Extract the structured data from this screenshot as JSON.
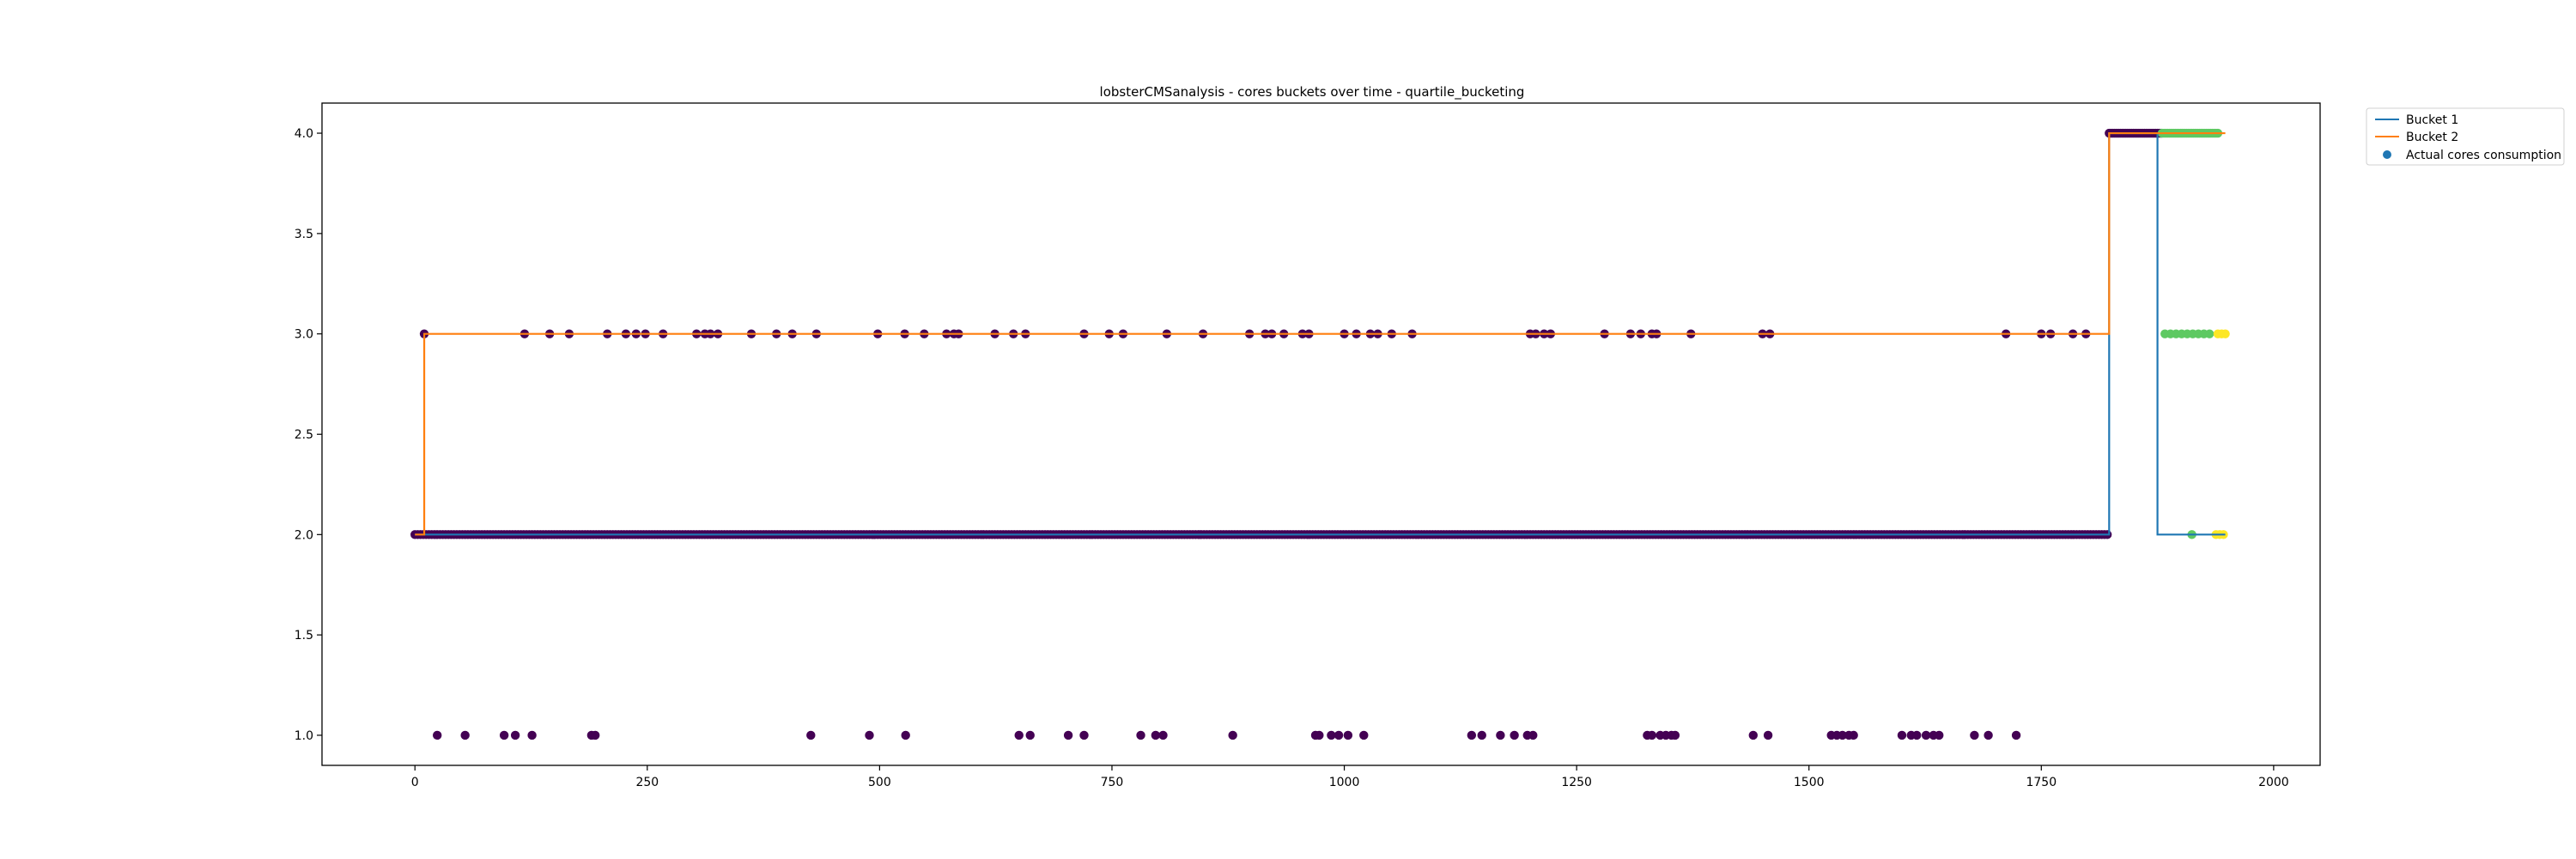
{
  "chart_data": {
    "type": "scatter",
    "title": "lobsterCMSanalysis - cores buckets over time - quartile_bucketing",
    "xlabel": "",
    "ylabel": "",
    "xlim": [
      -100,
      2050
    ],
    "ylim": [
      0.85,
      4.15
    ],
    "grid": false,
    "legend_position": "outside top-right",
    "xticks": [
      0,
      250,
      500,
      750,
      1000,
      1250,
      1500,
      1750,
      2000
    ],
    "xtick_labels": [
      "0",
      "250",
      "500",
      "750",
      "1000",
      "1250",
      "1500",
      "1750",
      "2000"
    ],
    "yticks": [
      1.0,
      1.5,
      2.0,
      2.5,
      3.0,
      3.5,
      4.0
    ],
    "ytick_labels": [
      "1.0",
      "1.5",
      "2.0",
      "2.5",
      "3.0",
      "3.5",
      "4.0"
    ],
    "series": [
      {
        "name": "Bucket 1",
        "kind": "line",
        "color": "#1f77b4",
        "steps": [
          [
            0,
            2.0
          ],
          [
            1823,
            2.0
          ],
          [
            1823,
            4.0
          ],
          [
            1875,
            4.0
          ],
          [
            1875,
            2.0
          ],
          [
            1948,
            2.0
          ]
        ]
      },
      {
        "name": "Bucket 2",
        "kind": "line",
        "color": "#ff7f0e",
        "steps": [
          [
            0,
            2.0
          ],
          [
            10,
            2.0
          ],
          [
            10,
            3.0
          ],
          [
            1823,
            3.0
          ],
          [
            1823,
            4.0
          ],
          [
            1948,
            4.0
          ]
        ]
      },
      {
        "name": "Actual cores consumption",
        "kind": "scatter",
        "color": "#1f77b4",
        "groups": [
          {
            "color": "#440154",
            "y": 2.0,
            "x_range": [
              0,
              1823
            ],
            "x_step": 3
          },
          {
            "color": "#440154",
            "y": 3.0,
            "x": [
              10,
              118,
              145,
              166,
              207,
              227,
              238,
              248,
              267,
              303,
              312,
              318,
              326,
              362,
              389,
              406,
              432,
              498,
              527,
              548,
              572,
              580,
              585,
              624,
              644,
              657,
              720,
              747,
              762,
              809,
              848,
              898,
              915,
              922,
              935,
              955,
              962,
              1000,
              1013,
              1028,
              1036,
              1051,
              1073,
              1200,
              1206,
              1215,
              1222,
              1280,
              1308,
              1319,
              1331,
              1336,
              1373,
              1450,
              1458,
              1712,
              1750,
              1760,
              1784,
              1798
            ]
          },
          {
            "color": "#440154",
            "y": 4.0,
            "x_range": [
              1823,
              1880
            ],
            "x_step": 2
          },
          {
            "color": "#440154",
            "y": 1.0,
            "x": [
              24,
              54,
              96,
              108,
              126,
              190,
              194,
              426,
              489,
              528,
              650,
              662,
              703,
              720,
              781,
              797,
              805,
              880,
              969,
              973,
              986,
              994,
              1004,
              1021,
              1137,
              1148,
              1168,
              1183,
              1197,
              1203,
              1326,
              1331,
              1340,
              1346,
              1352,
              1356,
              1440,
              1456,
              1524,
              1530,
              1536,
              1543,
              1548,
              1600,
              1610,
              1616,
              1626,
              1634,
              1640,
              1678,
              1693,
              1723
            ]
          },
          {
            "color": "#5ec962",
            "y": 4.0,
            "x_range": [
              1880,
              1940
            ],
            "x_step": 2
          },
          {
            "color": "#5ec962",
            "y": 3.0,
            "x": [
              1883,
              1889,
              1895,
              1901,
              1907,
              1913,
              1919,
              1925,
              1931
            ]
          },
          {
            "color": "#5ec962",
            "y": 2.0,
            "x": [
              1912
            ]
          },
          {
            "color": "#fde725",
            "y": 3.0,
            "x": [
              1940,
              1944,
              1948
            ]
          },
          {
            "color": "#fde725",
            "y": 2.0,
            "x": [
              1938,
              1942,
              1946
            ]
          }
        ]
      }
    ]
  }
}
